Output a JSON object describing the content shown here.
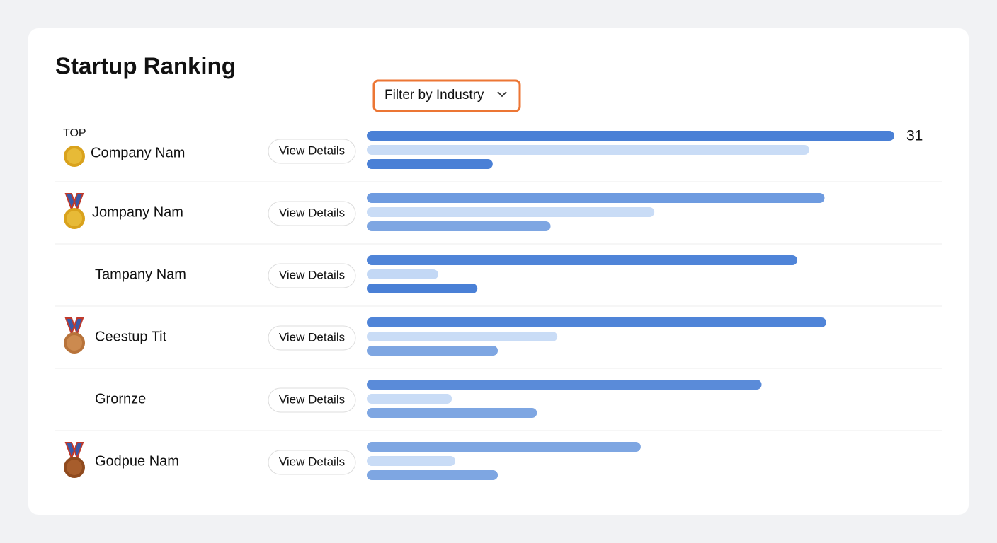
{
  "header": {
    "title": "Startup Ranking",
    "filter": "Filter by Industry"
  },
  "rows": [
    {
      "badge": "TOP",
      "medal": "gold",
      "name": "Company Nam",
      "button": "View Details",
      "bars": [
        31,
        26,
        7.4
      ],
      "bar_colors": [
        "#4a80d6",
        "#c9dcf6",
        "#4a80d6"
      ]
    },
    {
      "medal": "gold-ribbon",
      "name": "Jompany Nam",
      "button": "View Details",
      "bars": [
        26.9,
        16.9,
        10.8
      ],
      "bar_colors": [
        "#6e9be0",
        "#c9dcf6",
        "#7ea6e2"
      ]
    },
    {
      "name": "Tampany Nam",
      "button": "View Details",
      "bars": [
        25.3,
        4.2,
        6.5
      ],
      "bar_colors": [
        "#4f84d8",
        "#c3d8f5",
        "#4a80d6"
      ]
    },
    {
      "medal": "bronze-ribbon",
      "name": "Ceestup Tit",
      "button": "View Details",
      "bars": [
        27,
        11.2,
        7.7
      ],
      "bar_colors": [
        "#4f84d8",
        "#c9dcf6",
        "#7ea6e2"
      ]
    },
    {
      "name": "Grornze",
      "button": "View Details",
      "bars": [
        23.2,
        5,
        10
      ],
      "bar_colors": [
        "#5a8bd9",
        "#c9dcf6",
        "#7ea6e2"
      ]
    },
    {
      "medal": "dark-bronze-ribbon",
      "name": "Godpue Nam",
      "button": "View Details",
      "bars": [
        16.1,
        5.2,
        7.7
      ],
      "bar_colors": [
        "#7ea6e2",
        "#c9dcf6",
        "#7ea6e2"
      ]
    }
  ]
}
